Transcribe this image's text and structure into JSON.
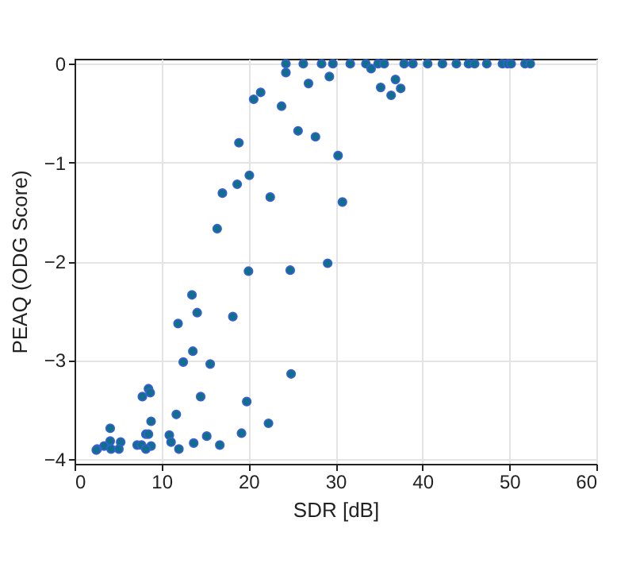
{
  "chart_data": {
    "type": "scatter",
    "xlabel": "SDR [dB]",
    "ylabel": "PEAQ (ODG Score)",
    "x": [
      24.3,
      26.3,
      28.4,
      29.7,
      31.7,
      33.5,
      34.9,
      35.6,
      37.9,
      38.9,
      40.6,
      42.3,
      43.9,
      45.3,
      46.0,
      47.4,
      49.2,
      49.8,
      50.2,
      51.8,
      52.4,
      24.3,
      34.1,
      29.3,
      26.9,
      36.9,
      35.2,
      37.5,
      36.4,
      21.4,
      20.6,
      23.8,
      25.7,
      27.7,
      18.9,
      30.3,
      20.1,
      18.7,
      17.0,
      22.5,
      30.8,
      16.4,
      29.1,
      20.0,
      24.8,
      13.5,
      18.2,
      24.9,
      19.8,
      22.3,
      14.1,
      11.9,
      13.6,
      12.5,
      15.6,
      8.5,
      8.7,
      7.8,
      14.5,
      11.7,
      8.8,
      4.1,
      8.2,
      8.5,
      19.2,
      10.9,
      15.2,
      4.1,
      5.3,
      11.1,
      13.7,
      7.2,
      7.7,
      16.7,
      8.8,
      3.4,
      2.6,
      2.5,
      4.2,
      5.1,
      8.2,
      12.0
    ],
    "series": [
      {
        "color": "#0f6f8c",
        "values": [
          0,
          0,
          0,
          0,
          0,
          0,
          0,
          0,
          0,
          0,
          0,
          0,
          0,
          0,
          0,
          0,
          0,
          0,
          0,
          0,
          0,
          -0.09,
          -0.05,
          -0.13,
          -0.2,
          -0.16,
          -0.24,
          -0.25,
          -0.32,
          -0.29,
          -0.36,
          -0.43,
          -0.68,
          -0.74,
          -0.8,
          -0.93,
          -1.13,
          -1.22,
          -1.31,
          -1.35,
          -1.4,
          -1.67,
          -2.02,
          -2.1,
          -2.09,
          -2.34,
          -2.56,
          -3.14,
          -3.42,
          -3.64,
          -2.52,
          -2.63,
          -2.91,
          -3.02,
          -3.04,
          -3.29,
          -3.33,
          -3.37,
          -3.37,
          -3.55,
          -3.62,
          -3.69,
          -3.75,
          -3.75,
          -3.74,
          -3.76,
          -3.77,
          -3.82,
          -3.83,
          -3.83,
          -3.84,
          -3.86,
          -3.86,
          -3.86,
          -3.87,
          -3.87,
          -3.9,
          -3.91,
          -3.9,
          -3.9,
          -3.9,
          -3.9
        ]
      }
    ],
    "xlim": [
      0,
      60
    ],
    "xticks": [
      0,
      10,
      20,
      30,
      40,
      50,
      60
    ],
    "ylim": [
      -4.05,
      0.05
    ],
    "yticks": [
      -4,
      -3,
      -2,
      -1,
      0
    ],
    "grid": true,
    "marker": "circle",
    "legend": false
  }
}
